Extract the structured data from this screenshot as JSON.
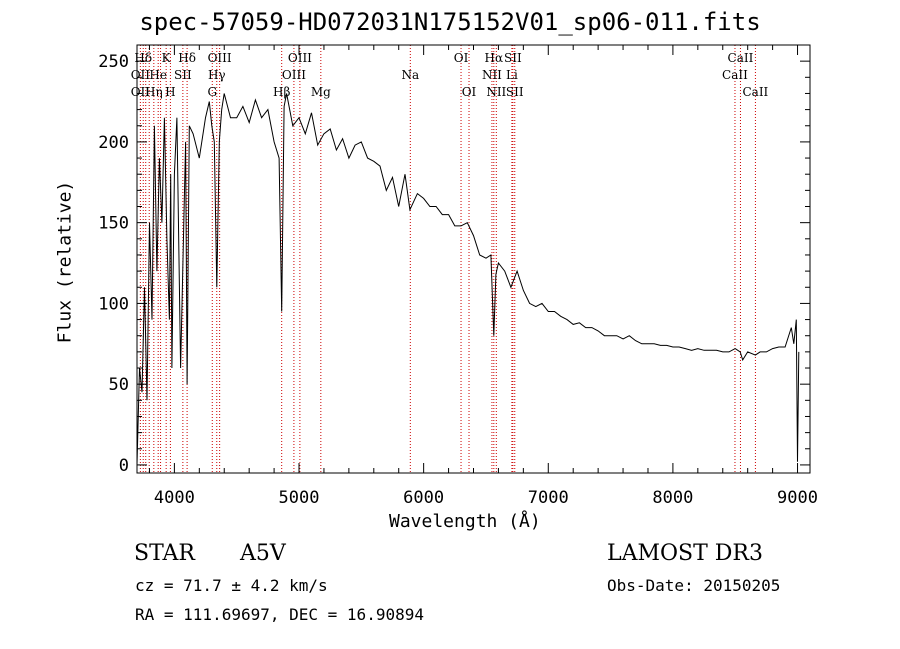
{
  "chart_data": {
    "type": "line",
    "title": "spec-57059-HD072031N175152V01_sp06-011.fits",
    "xlabel": "Wavelength (Å)",
    "ylabel": "Flux (relative)",
    "xlim": [
      3700,
      9100
    ],
    "ylim": [
      -5,
      260
    ],
    "xticks": [
      4000,
      5000,
      6000,
      7000,
      8000,
      9000
    ],
    "yticks": [
      0,
      50,
      100,
      150,
      200,
      250
    ],
    "series": [
      {
        "name": "spectrum",
        "x": [
          3700,
          3720,
          3740,
          3760,
          3780,
          3800,
          3820,
          3840,
          3860,
          3880,
          3900,
          3920,
          3940,
          3960,
          3970,
          3980,
          4000,
          4020,
          4050,
          4090,
          4102,
          4120,
          4150,
          4200,
          4250,
          4280,
          4300,
          4320,
          4340,
          4360,
          4380,
          4400,
          4450,
          4500,
          4550,
          4600,
          4650,
          4700,
          4750,
          4800,
          4840,
          4861,
          4880,
          4900,
          4950,
          5000,
          5050,
          5100,
          5150,
          5200,
          5250,
          5300,
          5350,
          5400,
          5450,
          5500,
          5550,
          5600,
          5650,
          5700,
          5750,
          5800,
          5850,
          5890,
          5950,
          6000,
          6050,
          6100,
          6150,
          6200,
          6250,
          6300,
          6350,
          6400,
          6450,
          6500,
          6540,
          6563,
          6580,
          6600,
          6650,
          6700,
          6750,
          6800,
          6850,
          6900,
          6950,
          7000,
          7050,
          7100,
          7150,
          7200,
          7250,
          7300,
          7350,
          7400,
          7450,
          7500,
          7550,
          7600,
          7650,
          7700,
          7750,
          7800,
          7850,
          7900,
          7950,
          8000,
          8050,
          8100,
          8150,
          8200,
          8250,
          8300,
          8350,
          8400,
          8450,
          8500,
          8540,
          8560,
          8600,
          8662,
          8700,
          8750,
          8800,
          8850,
          8900,
          8950,
          8970,
          8990,
          9000,
          9010
        ],
        "y": [
          0,
          60,
          45,
          110,
          40,
          150,
          90,
          210,
          120,
          190,
          150,
          215,
          140,
          90,
          180,
          60,
          180,
          215,
          60,
          200,
          50,
          210,
          205,
          190,
          215,
          225,
          210,
          200,
          110,
          200,
          220,
          230,
          215,
          215,
          222,
          212,
          226,
          215,
          220,
          200,
          190,
          95,
          222,
          230,
          210,
          215,
          205,
          218,
          198,
          205,
          208,
          195,
          202,
          190,
          198,
          200,
          190,
          188,
          185,
          170,
          178,
          160,
          180,
          158,
          168,
          165,
          160,
          160,
          155,
          155,
          148,
          148,
          150,
          142,
          130,
          128,
          130,
          80,
          118,
          125,
          120,
          110,
          120,
          108,
          100,
          98,
          100,
          95,
          95,
          92,
          90,
          87,
          88,
          85,
          85,
          83,
          80,
          80,
          80,
          78,
          80,
          77,
          75,
          75,
          75,
          74,
          74,
          73,
          73,
          72,
          71,
          72,
          71,
          71,
          71,
          70,
          70,
          72,
          70,
          65,
          70,
          68,
          70,
          70,
          72,
          73,
          73,
          85,
          75,
          90,
          2,
          70
        ]
      }
    ],
    "line_labels": [
      {
        "label": "Hδ",
        "x": 3750,
        "row": 1
      },
      {
        "label": "K",
        "x": 3934,
        "row": 1
      },
      {
        "label": "Hδ",
        "x": 4102,
        "row": 1
      },
      {
        "label": "OIII",
        "x": 4363,
        "row": 1
      },
      {
        "label": "OIII",
        "x": 5007,
        "row": 1
      },
      {
        "label": "OI",
        "x": 6300,
        "row": 1
      },
      {
        "label": "Hα",
        "x": 6563,
        "row": 1
      },
      {
        "label": "SII",
        "x": 6716,
        "row": 1
      },
      {
        "label": "CaII",
        "x": 8542,
        "row": 1
      },
      {
        "label": "OII",
        "x": 3727,
        "row": 2
      },
      {
        "label": "He",
        "x": 3870,
        "row": 2
      },
      {
        "label": "SII",
        "x": 4068,
        "row": 2
      },
      {
        "label": "Hγ",
        "x": 4340,
        "row": 2
      },
      {
        "label": "OIII",
        "x": 4959,
        "row": 2
      },
      {
        "label": "Na",
        "x": 5893,
        "row": 2
      },
      {
        "label": "NII",
        "x": 6548,
        "row": 2
      },
      {
        "label": "Li",
        "x": 6708,
        "row": 2
      },
      {
        "label": "CaII",
        "x": 8498,
        "row": 2
      },
      {
        "label": "OII",
        "x": 3727,
        "row": 3
      },
      {
        "label": "Hη",
        "x": 3835,
        "row": 3
      },
      {
        "label": "H",
        "x": 3968,
        "row": 3
      },
      {
        "label": "G",
        "x": 4304,
        "row": 3
      },
      {
        "label": "Hβ",
        "x": 4861,
        "row": 3
      },
      {
        "label": "Mg",
        "x": 5175,
        "row": 3
      },
      {
        "label": "OI",
        "x": 6364,
        "row": 3
      },
      {
        "label": "NII",
        "x": 6583,
        "row": 3
      },
      {
        "label": "SII",
        "x": 6731,
        "row": 3
      },
      {
        "label": "CaII",
        "x": 8662,
        "row": 3
      }
    ],
    "line_markers": [
      3727,
      3750,
      3770,
      3798,
      3835,
      3870,
      3889,
      3934,
      3968,
      4068,
      4102,
      4304,
      4340,
      4363,
      4861,
      4959,
      5007,
      5175,
      5893,
      6300,
      6364,
      6548,
      6563,
      6583,
      6708,
      6716,
      6731,
      8498,
      8542,
      8662
    ]
  },
  "info": {
    "object_type": "STAR",
    "subclass": "A5V",
    "survey": "LAMOST DR3",
    "cz": "cz = 71.7 ± 4.2 km/s",
    "obs_date": "Obs-Date: 20150205",
    "coords": "RA = 111.69697, DEC =  16.90894"
  }
}
